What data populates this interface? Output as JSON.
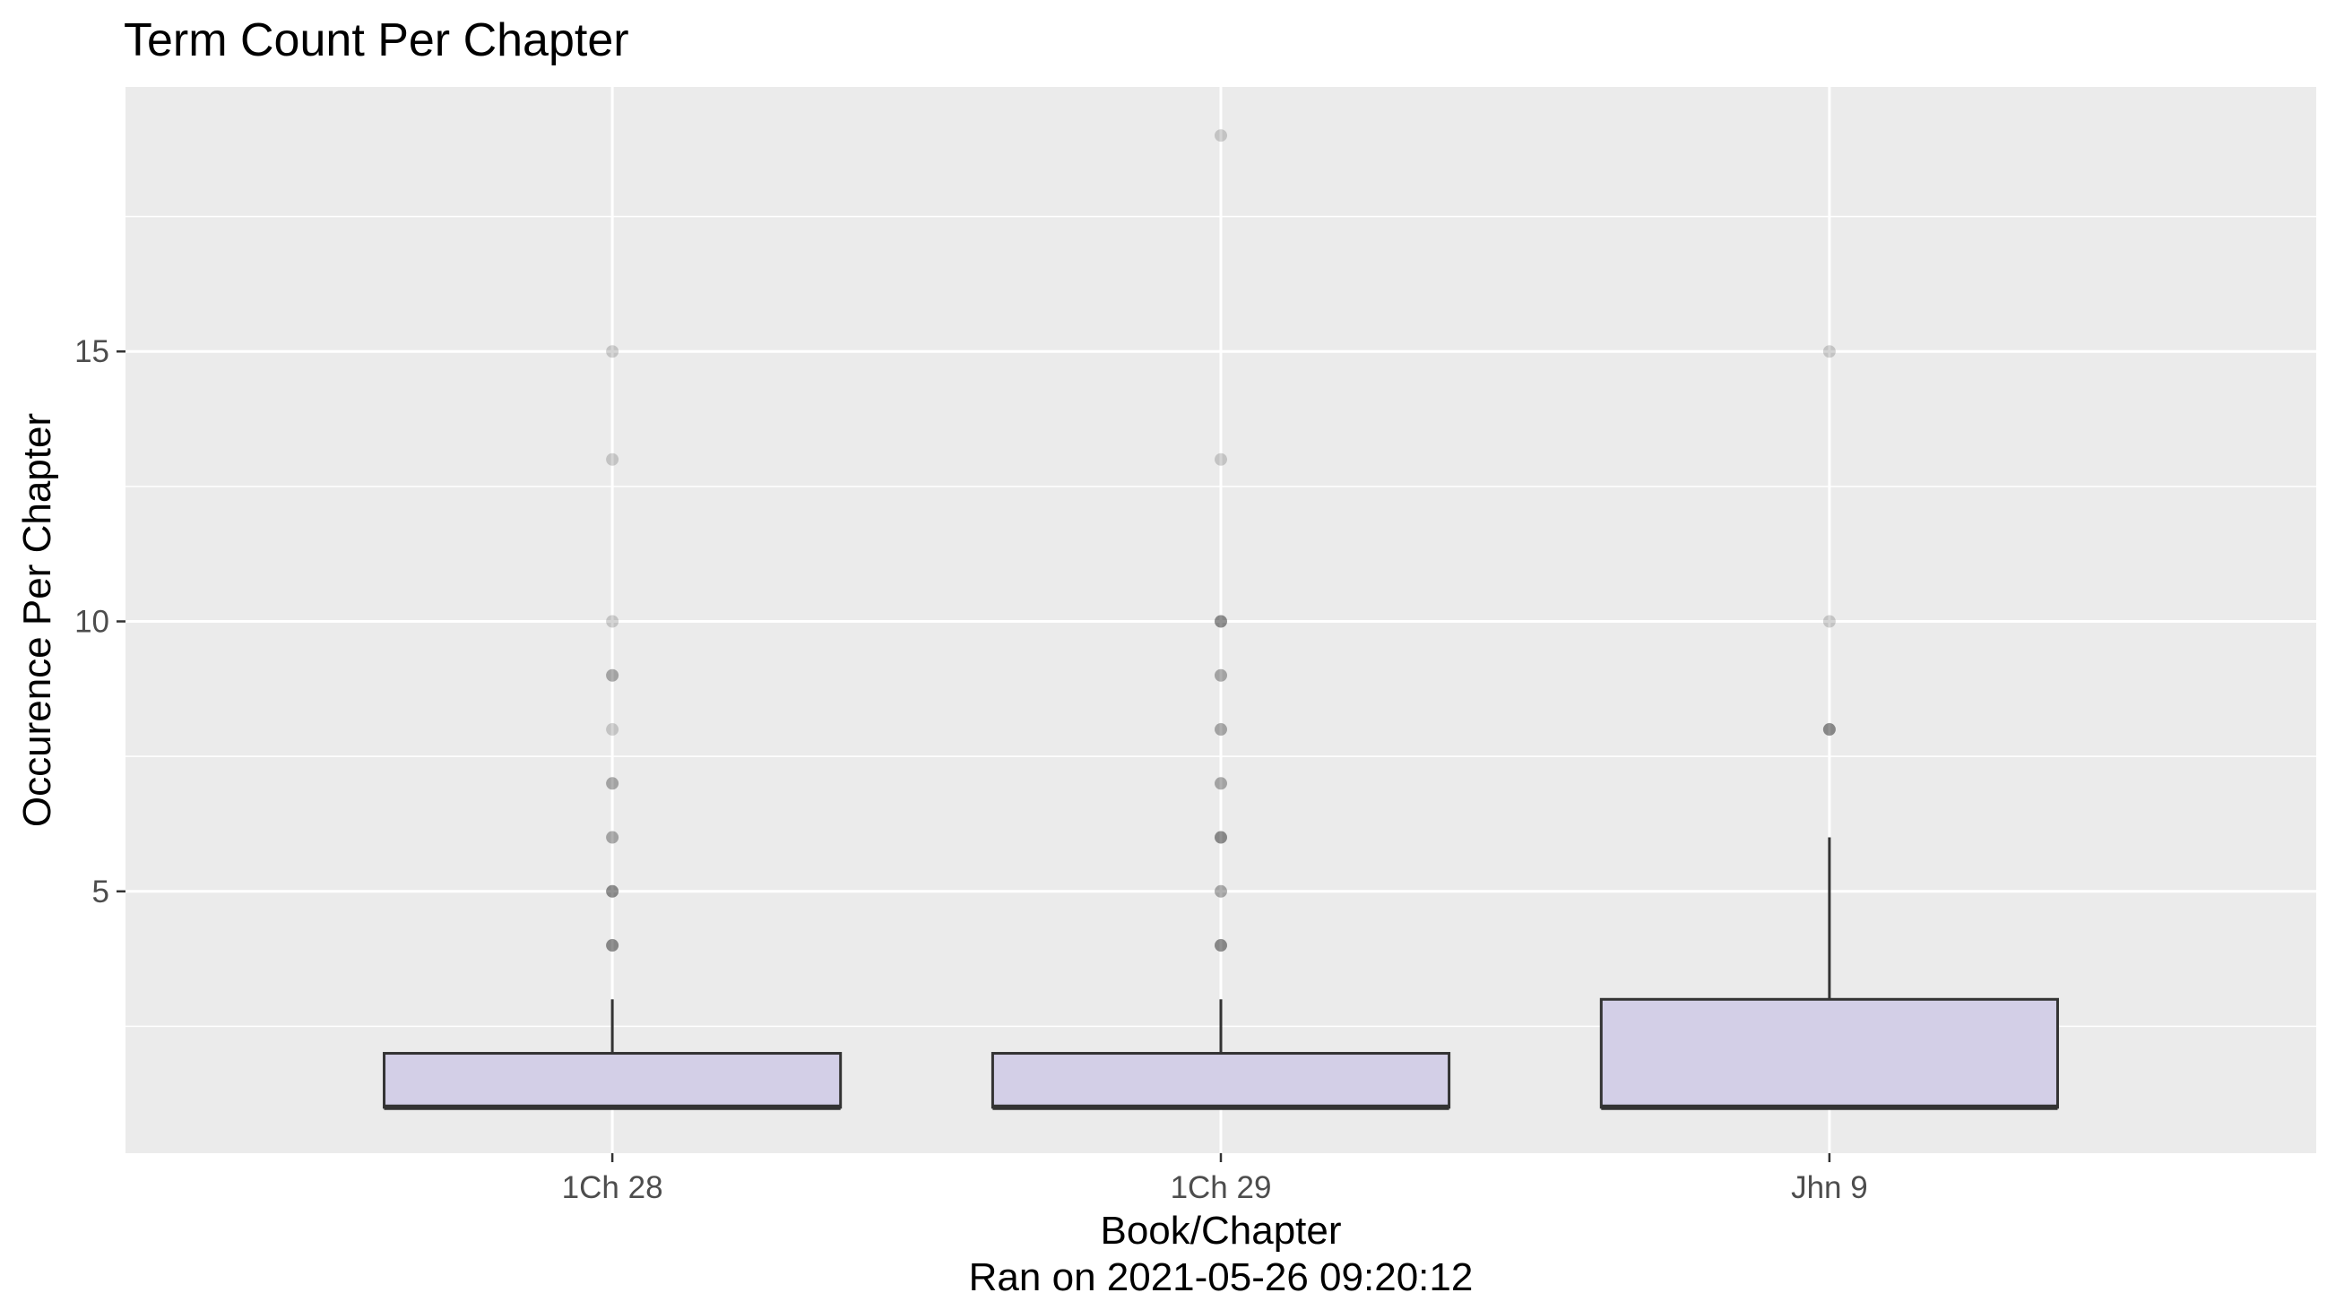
{
  "chart_data": {
    "type": "boxplot",
    "title": "Term Count Per Chapter",
    "xlabel": "Book/Chapter",
    "caption": "Ran on 2021-05-26 09:20:12",
    "ylabel": "Occurence Per Chapter",
    "categories": [
      "1Ch 28",
      "1Ch 29",
      "Jhn 9"
    ],
    "y_ticks": [
      5,
      10,
      15
    ],
    "ylim": [
      0.15,
      19.9
    ],
    "grid": true,
    "box_fill": "#d3cfe7",
    "panel_background": "#ebebeb",
    "boxes": [
      {
        "category": "1Ch 28",
        "whisker_low": 1,
        "q1": 1,
        "median": 1,
        "q3": 2,
        "whisker_high": 3,
        "outliers": [
          4,
          4,
          4,
          5,
          5,
          5,
          6,
          6,
          7,
          7,
          8,
          9,
          9,
          10,
          13,
          15
        ]
      },
      {
        "category": "1Ch 29",
        "whisker_low": 1,
        "q1": 1,
        "median": 1,
        "q3": 2,
        "whisker_high": 3,
        "outliers": [
          4,
          4,
          4,
          5,
          5,
          6,
          6,
          6,
          7,
          7,
          8,
          8,
          9,
          9,
          10,
          10,
          10,
          13,
          19
        ]
      },
      {
        "category": "Jhn 9",
        "whisker_low": 1,
        "q1": 1,
        "median": 1,
        "q3": 3,
        "whisker_high": 6,
        "outliers": [
          8,
          8,
          8,
          10,
          15
        ]
      }
    ]
  }
}
